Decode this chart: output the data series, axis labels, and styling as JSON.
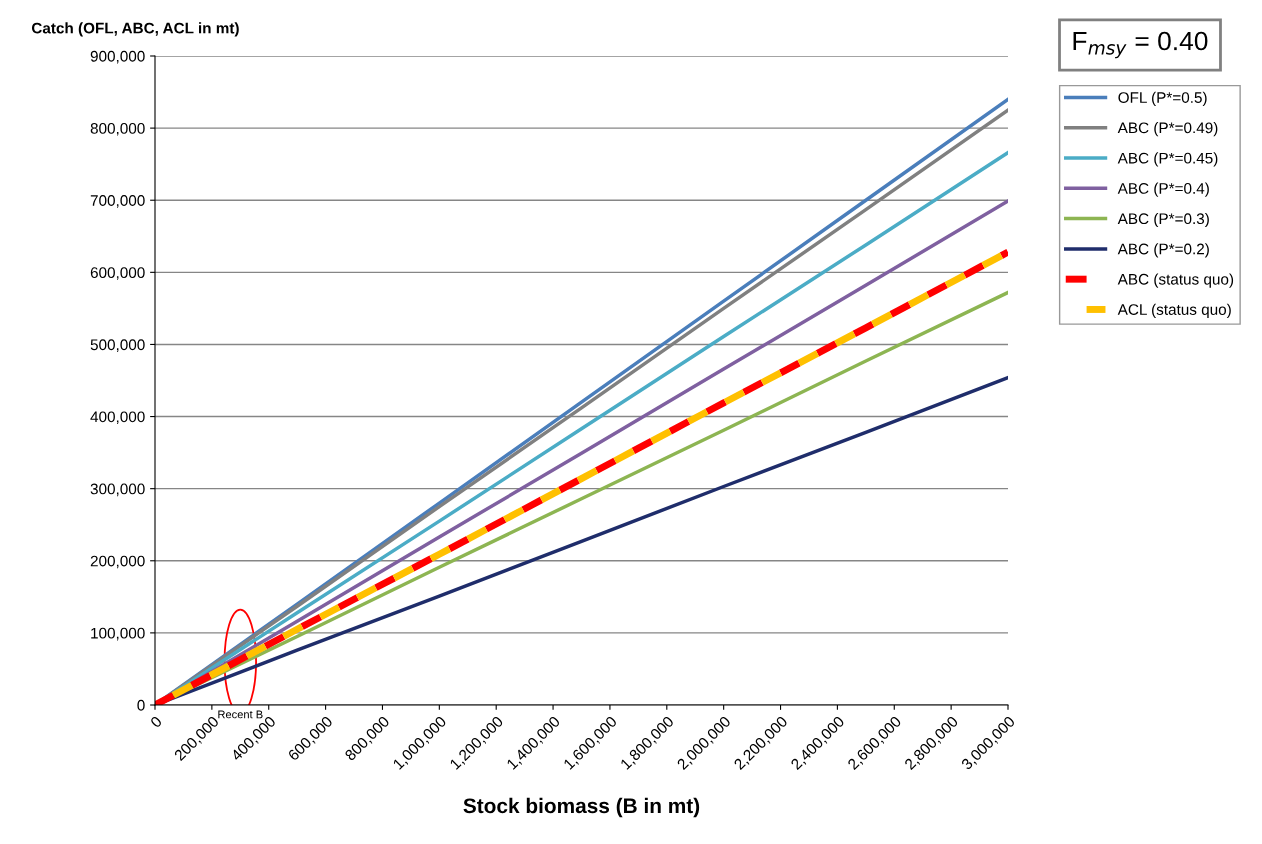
{
  "chart_data": {
    "type": "line",
    "title": "F$_{msy}$ = 0.40",
    "ylabel": "Catch (OFL, ABC, ACL in mt)",
    "xlabel": "Stock biomass (B in mt)",
    "x": [
      0,
      500000,
      1000000,
      1500000,
      2000000,
      2500000,
      3000000
    ],
    "series": [
      {
        "name": "OFL (P*=0.5)",
        "color": "#4a7ebb",
        "values": [
          0,
          140000,
          280000,
          420000,
          560000,
          700000,
          840000
        ]
      },
      {
        "name": "ABC (P*=0.49)",
        "color": "#808080",
        "values": [
          0,
          137000,
          275000,
          412000,
          550000,
          687000,
          825000
        ]
      },
      {
        "name": "ABC (P*=0.45)",
        "color": "#4bacc6",
        "values": [
          0,
          128000,
          255000,
          383000,
          511000,
          638000,
          766000
        ]
      },
      {
        "name": "ABC (P*=0.4)",
        "color": "#7f60a0",
        "values": [
          0,
          116000,
          233000,
          349000,
          466000,
          582000,
          699000
        ]
      },
      {
        "name": "ABC (P*=0.3)",
        "color": "#8db552",
        "values": [
          0,
          95000,
          191000,
          286000,
          381000,
          477000,
          572000
        ]
      },
      {
        "name": "ABC (P*=0.2)",
        "color": "#1f2d6b",
        "values": [
          0,
          76000,
          151000,
          227000,
          303000,
          378000,
          454000
        ]
      },
      {
        "name": "ABC (status quo)",
        "color": "#ff0000",
        "values": [
          0,
          105000,
          209000,
          314000,
          419000,
          523000,
          628000
        ],
        "line_style": "dashed"
      },
      {
        "name": "ACL (status quo)",
        "color": "#ffc000",
        "values": [
          0,
          105000,
          209000,
          314000,
          419000,
          523000,
          628000
        ],
        "line_style": "dashed"
      }
    ],
    "xlim": [
      0,
      3000000
    ],
    "xticks": [
      {
        "value": 0,
        "label": "0"
      },
      {
        "value": 200000,
        "label": "200,000"
      },
      {
        "value": 400000,
        "label": "400,000"
      },
      {
        "value": 600000,
        "label": "600,000"
      },
      {
        "value": 800000,
        "label": "800,000"
      },
      {
        "value": 1000000,
        "label": "1,000,000"
      },
      {
        "value": 1200000,
        "label": "1,200,000"
      },
      {
        "value": 1400000,
        "label": "1,400,000"
      },
      {
        "value": 1600000,
        "label": "1,600,000"
      },
      {
        "value": 1800000,
        "label": "1,800,000"
      },
      {
        "value": 2000000,
        "label": "2,000,000"
      },
      {
        "value": 2200000,
        "label": "2,200,000"
      },
      {
        "value": 2400000,
        "label": "2,400,000"
      },
      {
        "value": 2600000,
        "label": "2,600,000"
      },
      {
        "value": 2800000,
        "label": "2,800,000"
      },
      {
        "value": 3000000,
        "label": "3,000,000"
      }
    ],
    "ylim": [
      0,
      900000
    ],
    "yticks": [
      {
        "value": 0,
        "label": "0"
      },
      {
        "value": 100000,
        "label": "100,000"
      },
      {
        "value": 200000,
        "label": "200,000"
      },
      {
        "value": 300000,
        "label": "300,000"
      },
      {
        "value": 400000,
        "label": "400,000"
      },
      {
        "value": 500000,
        "label": "500,000"
      },
      {
        "value": 600000,
        "label": "600,000"
      },
      {
        "value": 700000,
        "label": "700,000"
      },
      {
        "value": 800000,
        "label": "800,000"
      },
      {
        "value": 900000,
        "label": "900,000"
      }
    ],
    "annotations": [
      "Recent B"
    ],
    "grid": "y",
    "legend": "right",
    "marker": "none"
  }
}
